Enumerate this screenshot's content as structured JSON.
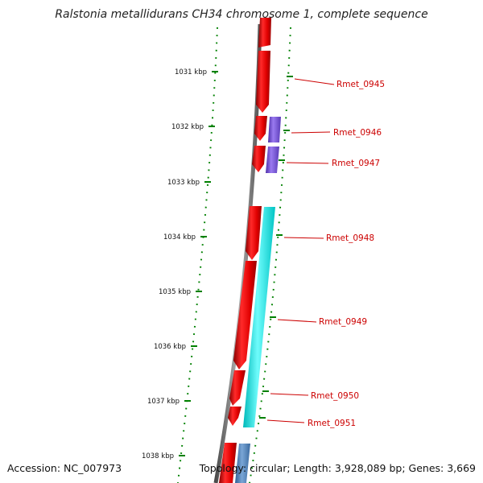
{
  "title": "Ralstonia metallidurans CH34 chromosome 1, complete sequence",
  "accession": "Accession: NC_007973",
  "topology": "Topology: circular; Length: 3,928,089 bp; Genes: 3,669",
  "colors": {
    "backbone": "#7f7f7f",
    "forward_gene": "#ee0000",
    "purple_feature": "#7b55d6",
    "cyan_feature": "#00f0f0",
    "steelblue_feature": "#4f7fb4",
    "tick": "#008000",
    "gene_label": "#cc0000"
  },
  "scale_ticks": [
    {
      "label": "1031 kbp"
    },
    {
      "label": "1032 kbp"
    },
    {
      "label": "1033 kbp"
    },
    {
      "label": "1034 kbp"
    },
    {
      "label": "1035 kbp"
    },
    {
      "label": "1036 kbp"
    },
    {
      "label": "1037 kbp"
    },
    {
      "label": "1038 kbp"
    }
  ],
  "gene_labels": [
    {
      "name": "Rmet_0945"
    },
    {
      "name": "Rmet_0946"
    },
    {
      "name": "Rmet_0947"
    },
    {
      "name": "Rmet_0948"
    },
    {
      "name": "Rmet_0949"
    },
    {
      "name": "Rmet_0950"
    },
    {
      "name": "Rmet_0951"
    }
  ]
}
